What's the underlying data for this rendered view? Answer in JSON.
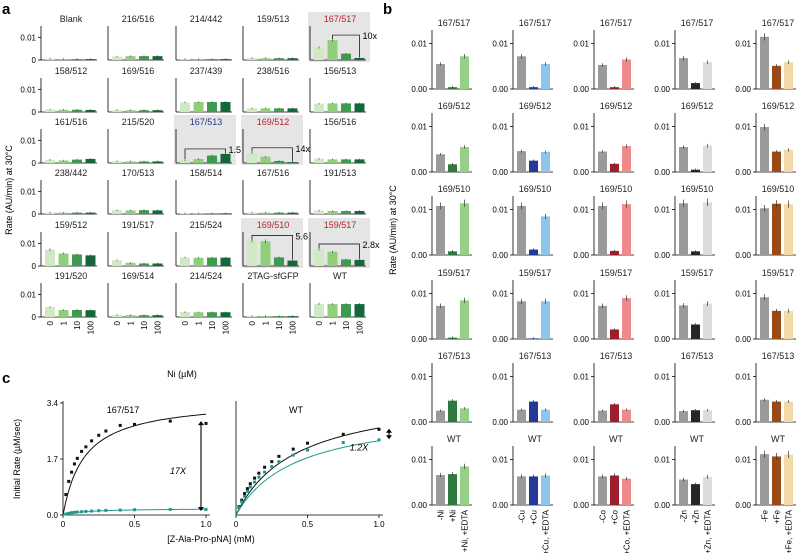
{
  "figure": {
    "panel_labels": [
      "a",
      "b",
      "c"
    ]
  },
  "chart_data": [
    {
      "type": "bar",
      "panel": "a",
      "title": "",
      "ylabel": "Rate (AU/min) at 30°C",
      "xlabel": "Ni (µM)",
      "categories": [
        "0",
        "1",
        "10",
        "100"
      ],
      "ylim": [
        0,
        0.015
      ],
      "yticks": [
        "0.01",
        "0"
      ],
      "shades": [
        "#cfe9c3",
        "#8fcf7a",
        "#3d9a4e",
        "#13673a"
      ],
      "subplots": [
        {
          "label": "Blank",
          "values": [
            0.0006,
            0.0004,
            0.0004,
            0.0004
          ]
        },
        {
          "label": "216/516",
          "values": [
            0.0015,
            0.0017,
            0.0017,
            0.0017
          ]
        },
        {
          "label": "214/442",
          "values": [
            0.0004,
            0.0004,
            0.0004,
            0.0004
          ]
        },
        {
          "label": "159/513",
          "values": [
            0.0009,
            0.0008,
            0.0008,
            0.0008
          ]
        },
        {
          "label": "167/517",
          "values": [
            0.0055,
            0.0088,
            0.0028,
            0.0009
          ],
          "highlight": true,
          "label_color": "#b4232f",
          "annotation": "10x"
        },
        {
          "label": "158/512",
          "values": [
            0.0011,
            0.001,
            0.001,
            0.0009
          ]
        },
        {
          "label": "169/516",
          "values": [
            0.0008,
            0.0008,
            0.0008,
            0.0008
          ]
        },
        {
          "label": "237/439",
          "values": [
            0.0042,
            0.0044,
            0.0044,
            0.0044
          ]
        },
        {
          "label": "238/516",
          "values": [
            0.0016,
            0.0016,
            0.0016,
            0.0016
          ]
        },
        {
          "label": "156/513",
          "values": [
            0.0037,
            0.0038,
            0.0038,
            0.0038
          ]
        },
        {
          "label": "161/516",
          "values": [
            0.0014,
            0.0011,
            0.0015,
            0.0018
          ]
        },
        {
          "label": "215/520",
          "values": [
            0.0007,
            0.0007,
            0.0007,
            0.0007
          ]
        },
        {
          "label": "167/513",
          "values": [
            0.0013,
            0.0018,
            0.0033,
            0.004
          ],
          "highlight": true,
          "label_color": "#2b3a8f",
          "annotation": "1.5x"
        },
        {
          "label": "169/512",
          "values": [
            0.0045,
            0.0028,
            0.0009,
            0.0004
          ],
          "highlight": true,
          "label_color": "#b4232f",
          "annotation": "14x"
        },
        {
          "label": "156/516",
          "values": [
            0.0019,
            0.0016,
            0.0016,
            0.0016
          ]
        },
        {
          "label": "238/442",
          "values": [
            0.0006,
            0.0006,
            0.0006,
            0.0006
          ]
        },
        {
          "label": "170/513",
          "values": [
            0.0017,
            0.0016,
            0.0017,
            0.0016
          ]
        },
        {
          "label": "158/514",
          "values": [
            0.0003,
            0.0003,
            0.0003,
            0.0003
          ]
        },
        {
          "label": "167/516",
          "values": [
            0.0006,
            0.0006,
            0.0006,
            0.0006
          ]
        },
        {
          "label": "191/513",
          "values": [
            0.0015,
            0.0013,
            0.0013,
            0.0013
          ]
        },
        {
          "label": "159/512",
          "values": [
            0.0072,
            0.0055,
            0.0051,
            0.0047
          ]
        },
        {
          "label": "191/517",
          "values": [
            0.0025,
            0.0014,
            0.0011,
            0.0011
          ]
        },
        {
          "label": "215/524",
          "values": [
            0.0038,
            0.0036,
            0.0037,
            0.0037
          ]
        },
        {
          "label": "169/510",
          "values": [
            0.0113,
            0.0109,
            0.0038,
            0.0024
          ],
          "highlight": true,
          "label_color": "#b4232f",
          "annotation": "5.6x"
        },
        {
          "label": "159/517",
          "values": [
            0.0075,
            0.0063,
            0.0029,
            0.0027
          ],
          "highlight": true,
          "label_color": "#b4232f",
          "annotation": "2.8x"
        },
        {
          "label": "191/520",
          "values": [
            0.0044,
            0.0031,
            0.0031,
            0.003
          ]
        },
        {
          "label": "169/514",
          "values": [
            0.0008,
            0.0008,
            0.0008,
            0.0008
          ]
        },
        {
          "label": "214/524",
          "values": [
            0.0022,
            0.0021,
            0.0021,
            0.0021
          ]
        },
        {
          "label": "2TAG-sfGFP",
          "values": [
            0.0005,
            0.0004,
            0.0004,
            0.0004
          ]
        },
        {
          "label": "WT",
          "values": [
            0.0058,
            0.0057,
            0.0057,
            0.0057
          ]
        }
      ]
    },
    {
      "type": "bar",
      "panel": "b",
      "ylabel": "Rate (AU/min) at 30°C",
      "ylim": [
        0,
        0.013
      ],
      "yticks": [
        "0.01",
        "0.00"
      ],
      "rows": [
        "167/517",
        "169/512",
        "169/510",
        "159/517",
        "167/513",
        "WT"
      ],
      "columns": [
        {
          "metal": "Ni",
          "categories": [
            "-Ni",
            "+Ni",
            "+Ni, +EDTA"
          ],
          "colors": [
            "#9a9a9a",
            "#2e7a3e",
            "#96d088"
          ]
        },
        {
          "metal": "Cu",
          "categories": [
            "-Cu",
            "+Cu",
            "+Cu, +EDTA"
          ],
          "colors": [
            "#9a9a9a",
            "#243a98",
            "#8ec5ea"
          ]
        },
        {
          "metal": "Co",
          "categories": [
            "-Co",
            "+Co",
            "+Co, +EDTA"
          ],
          "colors": [
            "#9a9a9a",
            "#9e1e2b",
            "#ef8a8a"
          ]
        },
        {
          "metal": "Zn",
          "categories": [
            "-Zn",
            "+Zn",
            "+Zn, +EDTA"
          ],
          "colors": [
            "#9a9a9a",
            "#262626",
            "#dcdcdc"
          ]
        },
        {
          "metal": "Fe",
          "categories": [
            "-Fe",
            "+Fe",
            "+Fe, +EDTA"
          ],
          "colors": [
            "#9a9a9a",
            "#9b4a16",
            "#f1d9a8"
          ]
        }
      ],
      "values": [
        [
          [
            0.0055,
            0.0004,
            0.0072
          ],
          [
            0.0072,
            0.0004,
            0.0055
          ],
          [
            0.0053,
            0.0004,
            0.0065
          ],
          [
            0.0068,
            0.0013,
            0.0059
          ],
          [
            0.0115,
            0.0051,
            0.0059
          ]
        ],
        [
          [
            0.0039,
            0.0017,
            0.0055
          ],
          [
            0.0046,
            0.0025,
            0.0044
          ],
          [
            0.0045,
            0.0018,
            0.0057
          ],
          [
            0.0055,
            0.0005,
            0.0058
          ],
          [
            0.0099,
            0.0045,
            0.0049
          ]
        ],
        [
          [
            0.0108,
            0.0008,
            0.0114
          ],
          [
            0.0108,
            0.0012,
            0.0085
          ],
          [
            0.0108,
            0.0009,
            0.0112
          ],
          [
            0.0114,
            0.0008,
            0.0116
          ],
          [
            0.0103,
            0.0113,
            0.0112
          ]
        ],
        [
          [
            0.0073,
            0.0003,
            0.0085
          ],
          [
            0.0083,
            0.0001,
            0.0083
          ],
          [
            0.0073,
            0.0021,
            0.009
          ],
          [
            0.0074,
            0.0032,
            0.0078
          ],
          [
            0.0092,
            0.0062,
            0.0062
          ]
        ],
        [
          [
            0.0025,
            0.0047,
            0.003
          ],
          [
            0.0027,
            0.0045,
            0.0027
          ],
          [
            0.0025,
            0.0039,
            0.0027
          ],
          [
            0.0024,
            0.0026,
            0.0026
          ],
          [
            0.0049,
            0.0045,
            0.0045
          ]
        ],
        [
          [
            0.0066,
            0.0068,
            0.0085
          ],
          [
            0.0063,
            0.0063,
            0.0065
          ],
          [
            0.0063,
            0.0065,
            0.0058
          ],
          [
            0.0056,
            0.0046,
            0.0062
          ],
          [
            0.0112,
            0.0107,
            0.0111
          ]
        ]
      ]
    },
    {
      "type": "line",
      "panel": "c",
      "xlabel": "[Z-Ala-Pro-pNA] (mM)",
      "ylabel": "Initial Rate (µM/sec)",
      "ylim": [
        0,
        3.4
      ],
      "yticks": [
        "0.0",
        "1.7",
        "3.4"
      ],
      "xlim": [
        0,
        1.0
      ],
      "xticks": [
        "0",
        "0.5",
        "1.0"
      ],
      "subplots": [
        {
          "title": "167/517",
          "annotation": "17X",
          "series": [
            {
              "name": "black",
              "color": "#111111",
              "x": [
                0.02,
                0.04,
                0.06,
                0.08,
                0.1,
                0.13,
                0.16,
                0.2,
                0.25,
                0.3,
                0.4,
                0.5,
                0.75,
                1.0
              ],
              "y": [
                0.62,
                1.02,
                1.3,
                1.55,
                1.72,
                1.93,
                2.07,
                2.25,
                2.42,
                2.55,
                2.72,
                2.75,
                2.85,
                2.78
              ],
              "fit": {
                "vmax": 3.52,
                "km": 0.15
              }
            },
            {
              "name": "teal",
              "color": "#1c9a8e",
              "x": [
                0.02,
                0.04,
                0.06,
                0.08,
                0.1,
                0.13,
                0.16,
                0.2,
                0.25,
                0.3,
                0.4,
                0.5,
                0.75,
                1.0
              ],
              "y": [
                0.03,
                0.05,
                0.07,
                0.08,
                0.09,
                0.1,
                0.11,
                0.12,
                0.13,
                0.14,
                0.15,
                0.16,
                0.17,
                0.17
              ],
              "fit": {
                "vmax": 0.2,
                "km": 0.15
              }
            }
          ]
        },
        {
          "title": "WT",
          "annotation": "1.2X",
          "series": [
            {
              "name": "black",
              "color": "#111111",
              "x": [
                0.02,
                0.04,
                0.06,
                0.08,
                0.1,
                0.13,
                0.16,
                0.2,
                0.25,
                0.3,
                0.4,
                0.5,
                0.75,
                1.0
              ],
              "y": [
                0.25,
                0.45,
                0.65,
                0.8,
                0.95,
                1.12,
                1.27,
                1.45,
                1.62,
                1.78,
                2.0,
                2.18,
                2.45,
                2.6
              ],
              "fit": {
                "vmax": 3.75,
                "km": 0.42
              }
            },
            {
              "name": "teal",
              "color": "#1c9a8e",
              "x": [
                0.02,
                0.04,
                0.06,
                0.08,
                0.1,
                0.13,
                0.16,
                0.2,
                0.25,
                0.3,
                0.4,
                0.5,
                0.75,
                1.0
              ],
              "y": [
                0.22,
                0.4,
                0.57,
                0.72,
                0.85,
                1.0,
                1.15,
                1.3,
                1.47,
                1.62,
                1.82,
                1.97,
                2.2,
                2.28
              ],
              "fit": {
                "vmax": 3.2,
                "km": 0.42
              }
            }
          ]
        }
      ]
    }
  ]
}
